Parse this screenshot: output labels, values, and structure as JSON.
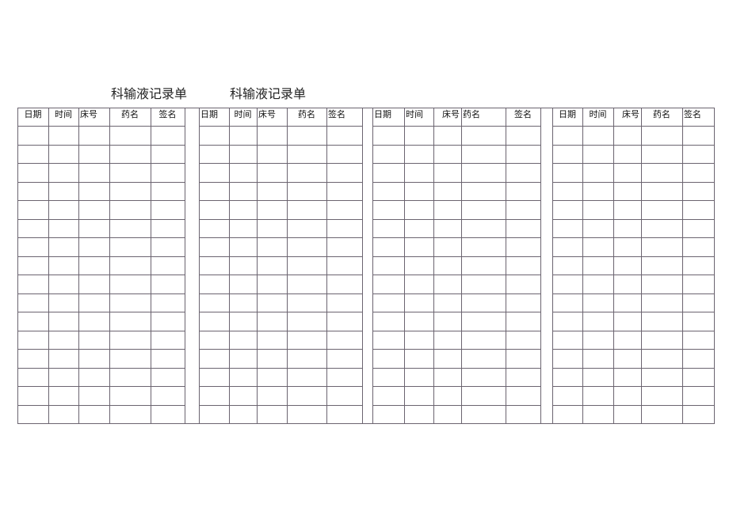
{
  "titles": [
    "科输液记录单",
    "科输液记录单"
  ],
  "tables": [
    {
      "headers": [
        "日期",
        "时间",
        "床号",
        "药名",
        "签名"
      ]
    },
    {
      "headers": [
        "日期",
        "时间",
        "床号",
        "药名",
        "签名"
      ]
    },
    {
      "headers": [
        "日期",
        "时间",
        "床号",
        "药名",
        "签名"
      ]
    },
    {
      "headers": [
        "日期",
        "时间",
        "床号",
        "药名",
        "签名"
      ]
    }
  ],
  "data_rows": 16,
  "colors": {
    "grid": "#6b6470",
    "text": "#111111"
  }
}
